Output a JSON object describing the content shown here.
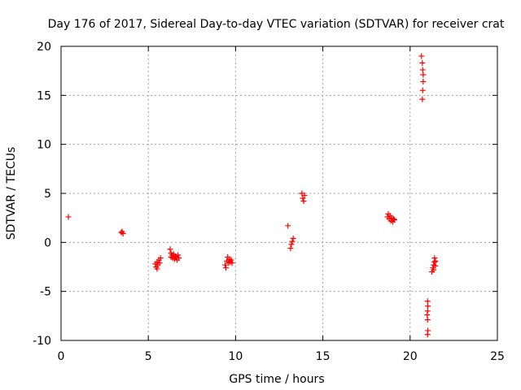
{
  "chart_data": {
    "type": "scatter",
    "title": "Day 176 of 2017, Sidereal Day-to-day VTEC variation (SDTVAR) for receiver crat",
    "xlabel": "GPS time / hours",
    "ylabel": "SDTVAR / TECUs",
    "xlim": [
      0,
      25
    ],
    "ylim": [
      -10,
      20
    ],
    "xticks": [
      0,
      5,
      10,
      15,
      20,
      25
    ],
    "yticks": [
      -10,
      -5,
      0,
      5,
      10,
      15,
      20
    ],
    "grid": true,
    "marker": "+",
    "color": "#ff0000",
    "series": [
      {
        "name": "SDTVAR",
        "points": [
          [
            0.42,
            2.6
          ],
          [
            3.45,
            1.0
          ],
          [
            3.5,
            1.1
          ],
          [
            3.55,
            0.9
          ],
          [
            5.4,
            -2.2
          ],
          [
            5.45,
            -2.5
          ],
          [
            5.5,
            -2.7
          ],
          [
            5.5,
            -2.0
          ],
          [
            5.55,
            -2.3
          ],
          [
            5.6,
            -1.8
          ],
          [
            5.65,
            -2.1
          ],
          [
            5.7,
            -1.6
          ],
          [
            6.25,
            -0.7
          ],
          [
            6.3,
            -1.1
          ],
          [
            6.3,
            -1.5
          ],
          [
            6.35,
            -1.3
          ],
          [
            6.4,
            -1.6
          ],
          [
            6.45,
            -1.2
          ],
          [
            6.5,
            -1.7
          ],
          [
            6.55,
            -1.4
          ],
          [
            6.6,
            -1.5
          ],
          [
            6.65,
            -1.8
          ],
          [
            6.7,
            -1.3
          ],
          [
            6.75,
            -1.6
          ],
          [
            9.4,
            -2.3
          ],
          [
            9.45,
            -2.6
          ],
          [
            9.5,
            -1.9
          ],
          [
            9.55,
            -1.5
          ],
          [
            9.6,
            -2.1
          ],
          [
            9.65,
            -1.7
          ],
          [
            9.7,
            -2.0
          ],
          [
            9.75,
            -1.8
          ],
          [
            9.8,
            -2.1
          ],
          [
            13.0,
            1.7
          ],
          [
            13.15,
            -0.6
          ],
          [
            13.2,
            -0.2
          ],
          [
            13.25,
            0.1
          ],
          [
            13.3,
            0.4
          ],
          [
            13.8,
            5.0
          ],
          [
            13.85,
            4.5
          ],
          [
            13.9,
            4.2
          ],
          [
            13.95,
            4.8
          ],
          [
            18.7,
            2.6
          ],
          [
            18.75,
            2.9
          ],
          [
            18.8,
            2.4
          ],
          [
            18.85,
            2.7
          ],
          [
            18.9,
            2.2
          ],
          [
            18.95,
            2.5
          ],
          [
            19.0,
            2.1
          ],
          [
            19.05,
            2.4
          ],
          [
            19.1,
            2.3
          ],
          [
            20.65,
            19.0
          ],
          [
            20.7,
            18.3
          ],
          [
            20.72,
            17.6
          ],
          [
            20.75,
            17.1
          ],
          [
            20.75,
            16.4
          ],
          [
            20.72,
            15.5
          ],
          [
            20.7,
            14.6
          ],
          [
            21.0,
            -6.0
          ],
          [
            21.02,
            -6.5
          ],
          [
            21.0,
            -7.0
          ],
          [
            20.98,
            -7.4
          ],
          [
            21.0,
            -7.9
          ],
          [
            21.02,
            -9.0
          ],
          [
            21.0,
            -9.4
          ],
          [
            21.25,
            -3.0
          ],
          [
            21.3,
            -2.6
          ],
          [
            21.35,
            -2.3
          ],
          [
            21.35,
            -2.8
          ],
          [
            21.4,
            -2.0
          ],
          [
            21.4,
            -1.6
          ],
          [
            21.45,
            -2.4
          ],
          [
            21.45,
            -1.9
          ]
        ]
      }
    ]
  }
}
